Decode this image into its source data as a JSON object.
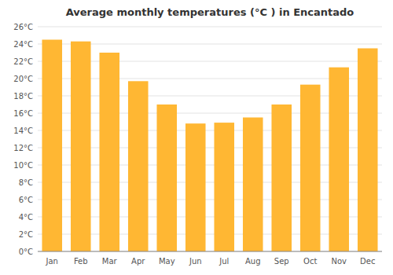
{
  "chart_data": {
    "type": "bar",
    "title": "Average monthly temperatures (°C ) in Encantado",
    "categories": [
      "Jan",
      "Feb",
      "Mar",
      "Apr",
      "May",
      "Jun",
      "Jul",
      "Aug",
      "Sep",
      "Oct",
      "Nov",
      "Dec"
    ],
    "values": [
      24.5,
      24.3,
      23.0,
      19.7,
      17.0,
      14.8,
      14.9,
      15.5,
      17.0,
      19.3,
      21.3,
      23.5
    ],
    "color": "#FFB733",
    "ylim": [
      0,
      26
    ],
    "yticks": [
      {
        "value": 0,
        "label": "0°C"
      },
      {
        "value": 2,
        "label": "2°C"
      },
      {
        "value": 4,
        "label": "4°C"
      },
      {
        "value": 6,
        "label": "6°C"
      },
      {
        "value": 8,
        "label": "8°C"
      },
      {
        "value": 10,
        "label": "10°C"
      },
      {
        "value": 12,
        "label": "12°C"
      },
      {
        "value": 14,
        "label": "14°C"
      },
      {
        "value": 16,
        "label": "16°C"
      },
      {
        "value": 18,
        "label": "18°C"
      },
      {
        "value": 20,
        "label": "20°C"
      },
      {
        "value": 22,
        "label": "22°C"
      },
      {
        "value": 24,
        "label": "24°C"
      },
      {
        "value": 26,
        "label": "26°C"
      }
    ],
    "grid": true
  }
}
